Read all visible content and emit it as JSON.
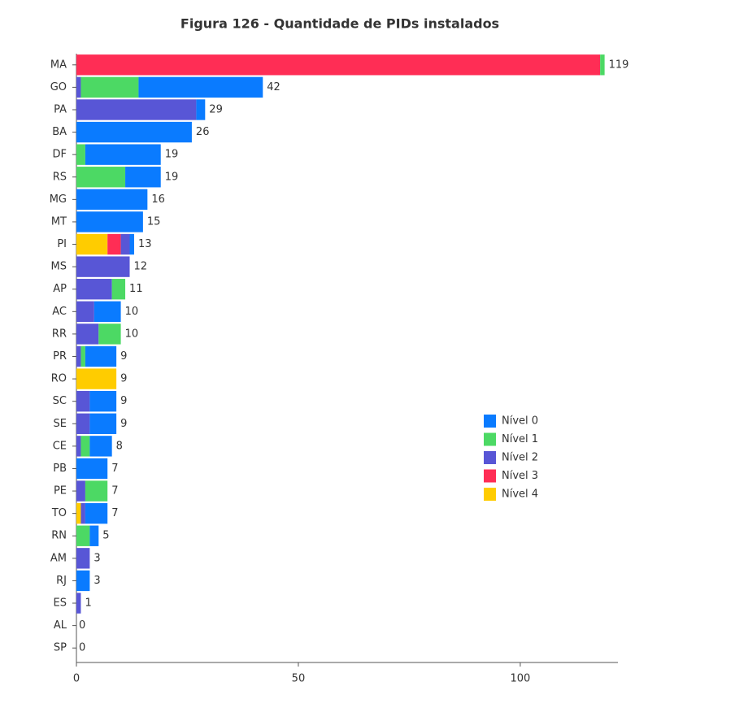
{
  "chart_data": {
    "type": "stacked_bar_horizontal",
    "title": "Figura 126 - Quantidade de PIDs instalados",
    "categories": [
      "MA",
      "GO",
      "PA",
      "BA",
      "DF",
      "RS",
      "MG",
      "MT",
      "PI",
      "MS",
      "AP",
      "AC",
      "RR",
      "PR",
      "RO",
      "SC",
      "SE",
      "CE",
      "PB",
      "PE",
      "TO",
      "RN",
      "AM",
      "RJ",
      "ES",
      "AL",
      "SP"
    ],
    "series": [
      {
        "name": "Nível 0",
        "color": "#0a7bff",
        "values": [
          0,
          28,
          2,
          26,
          17,
          8,
          16,
          15,
          1,
          0,
          0,
          6,
          0,
          7,
          0,
          6,
          6,
          5,
          7,
          0,
          5,
          2,
          0,
          3,
          0,
          0,
          0
        ]
      },
      {
        "name": "Nível 1",
        "color": "#4cd964",
        "values": [
          1,
          13,
          0,
          0,
          2,
          11,
          0,
          0,
          0,
          0,
          3,
          0,
          5,
          1,
          0,
          0,
          0,
          2,
          0,
          5,
          0,
          3,
          0,
          0,
          0,
          0,
          0
        ]
      },
      {
        "name": "Nível 2",
        "color": "#5856d6",
        "values": [
          0,
          1,
          27,
          0,
          0,
          0,
          0,
          0,
          2,
          12,
          8,
          4,
          5,
          1,
          0,
          3,
          3,
          1,
          0,
          2,
          1,
          0,
          3,
          0,
          1,
          0,
          0
        ]
      },
      {
        "name": "Nível 3",
        "color": "#ff2d55",
        "values": [
          118,
          0,
          0,
          0,
          0,
          0,
          0,
          0,
          3,
          0,
          0,
          0,
          0,
          0,
          0,
          0,
          0,
          0,
          0,
          0,
          0,
          0,
          0,
          0,
          0,
          0,
          0
        ]
      },
      {
        "name": "Nível 4",
        "color": "#ffcc00",
        "values": [
          0,
          0,
          0,
          0,
          0,
          0,
          0,
          0,
          7,
          0,
          0,
          0,
          0,
          0,
          9,
          0,
          0,
          0,
          0,
          0,
          1,
          0,
          0,
          0,
          0,
          0,
          0
        ]
      }
    ],
    "totals": [
      119,
      42,
      29,
      26,
      19,
      19,
      16,
      15,
      13,
      12,
      11,
      10,
      10,
      9,
      9,
      9,
      9,
      8,
      7,
      7,
      7,
      5,
      3,
      3,
      1,
      0,
      0
    ],
    "xlim": [
      0,
      122
    ],
    "xticks": [
      0,
      50,
      100
    ]
  }
}
